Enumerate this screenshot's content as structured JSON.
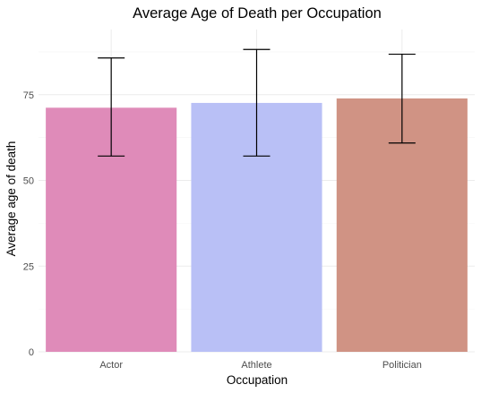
{
  "chart_data": {
    "type": "bar",
    "title": "Average Age of Death per Occupation",
    "xlabel": "Occupation",
    "ylabel": "Average age of death",
    "categories": [
      "Actor",
      "Athlete",
      "Politician"
    ],
    "values": [
      71.2,
      72.6,
      73.9
    ],
    "error_low": [
      57.1,
      57.1,
      60.9
    ],
    "error_high": [
      85.7,
      88.2,
      86.8
    ],
    "colors": [
      "#df8bb9",
      "#b9c0f6",
      "#d09384"
    ],
    "ylim": [
      0,
      94
    ],
    "yticks": [
      0,
      25,
      50,
      75
    ],
    "grid": true,
    "legend": "none"
  }
}
